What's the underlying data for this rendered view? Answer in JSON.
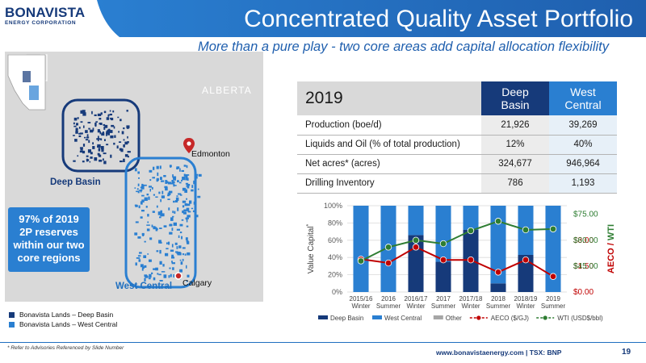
{
  "header": {
    "logo_main": "BONAVISTA",
    "logo_sub": "ENERGY CORPORATION",
    "title": "Concentrated Quality Asset Portfolio",
    "subtitle": "More than a pure play - two core areas add capital allocation flexibility"
  },
  "map": {
    "province_label": "ALBERTA",
    "deep_basin_label": "Deep Basin",
    "west_central_label": "West Central",
    "city_edmonton": "Edmonton",
    "city_calgary": "Calgary",
    "reserves_callout": [
      "97% of 2019",
      "2P reserves",
      "within our two",
      "core regions"
    ],
    "lands_legend": [
      {
        "label": "Bonavista Lands – Deep Basin",
        "color": "#163a7a"
      },
      {
        "label": "Bonavista Lands – West Central",
        "color": "#2a7fd1"
      }
    ]
  },
  "table": {
    "year": "2019",
    "col_deep": [
      "Deep",
      "Basin"
    ],
    "col_west": [
      "West",
      "Central"
    ],
    "rows": [
      {
        "label": "Production (boe/d)",
        "deep": "21,926",
        "west": "39,269"
      },
      {
        "label": "Liquids and Oil (% of total production)",
        "deep": "12%",
        "west": "40%"
      },
      {
        "label": "Net acres* (acres)",
        "deep": "324,677",
        "west": "946,964"
      },
      {
        "label": "Drilling Inventory",
        "deep": "786",
        "west": "1,193"
      }
    ]
  },
  "chart_data": {
    "type": "bar",
    "stacked": true,
    "categories": [
      [
        "2015/16",
        "Winter"
      ],
      [
        "2016",
        "Summer"
      ],
      [
        "2016/17",
        "Winter"
      ],
      [
        "2017",
        "Summer"
      ],
      [
        "2017/18",
        "Winter"
      ],
      [
        "2018",
        "Summer"
      ],
      [
        "2018/19",
        "Winter"
      ],
      [
        "2019",
        "Summer"
      ]
    ],
    "ylabel": "Value Capital",
    "ylabel_sup": "*",
    "y2label": "AECO / WTI",
    "ylim": [
      0,
      100
    ],
    "yticks": [
      "0%",
      "20%",
      "40%",
      "60%",
      "80%",
      "100%"
    ],
    "y2_ticks_aeco": [
      "$0.00",
      "$1.50",
      "$3.00"
    ],
    "y2_ticks_wti": [
      "$45.00",
      "$60.00",
      "$75.00"
    ],
    "series": [
      {
        "name": "Deep Basin",
        "color": "#163a7a",
        "values": [
          0,
          0,
          66,
          35,
          72,
          10,
          43,
          0
        ]
      },
      {
        "name": "West Central",
        "color": "#2a7fd1",
        "values": [
          100,
          100,
          34,
          65,
          28,
          90,
          57,
          100
        ]
      },
      {
        "name": "Other",
        "color": "#a6a6a6",
        "values": [
          0,
          0,
          0,
          0,
          0,
          0,
          0,
          0
        ]
      }
    ],
    "lines": [
      {
        "name": "AECO ($/GJ)",
        "color": "#c00000",
        "axis": "aeco",
        "values": [
          1.9,
          1.68,
          2.6,
          1.86,
          1.86,
          1.15,
          1.86,
          0.9
        ]
      },
      {
        "name": "WTI (USD$/bbl)",
        "color": "#2e7d32",
        "axis": "wti",
        "values": [
          48,
          56,
          60,
          58,
          65.5,
          71,
          66,
          66.5
        ]
      }
    ]
  },
  "footer": {
    "note": "* Refer to Advisories Referenced by Slide Number",
    "site": "www.bonavistaenergy.com  |  TSX: BNP",
    "page": "19"
  },
  "colors": {
    "deep_blue": "#163a7a",
    "bright_blue": "#2a7fd1",
    "aeco_red": "#c00000",
    "wti_green": "#2e7d32"
  }
}
